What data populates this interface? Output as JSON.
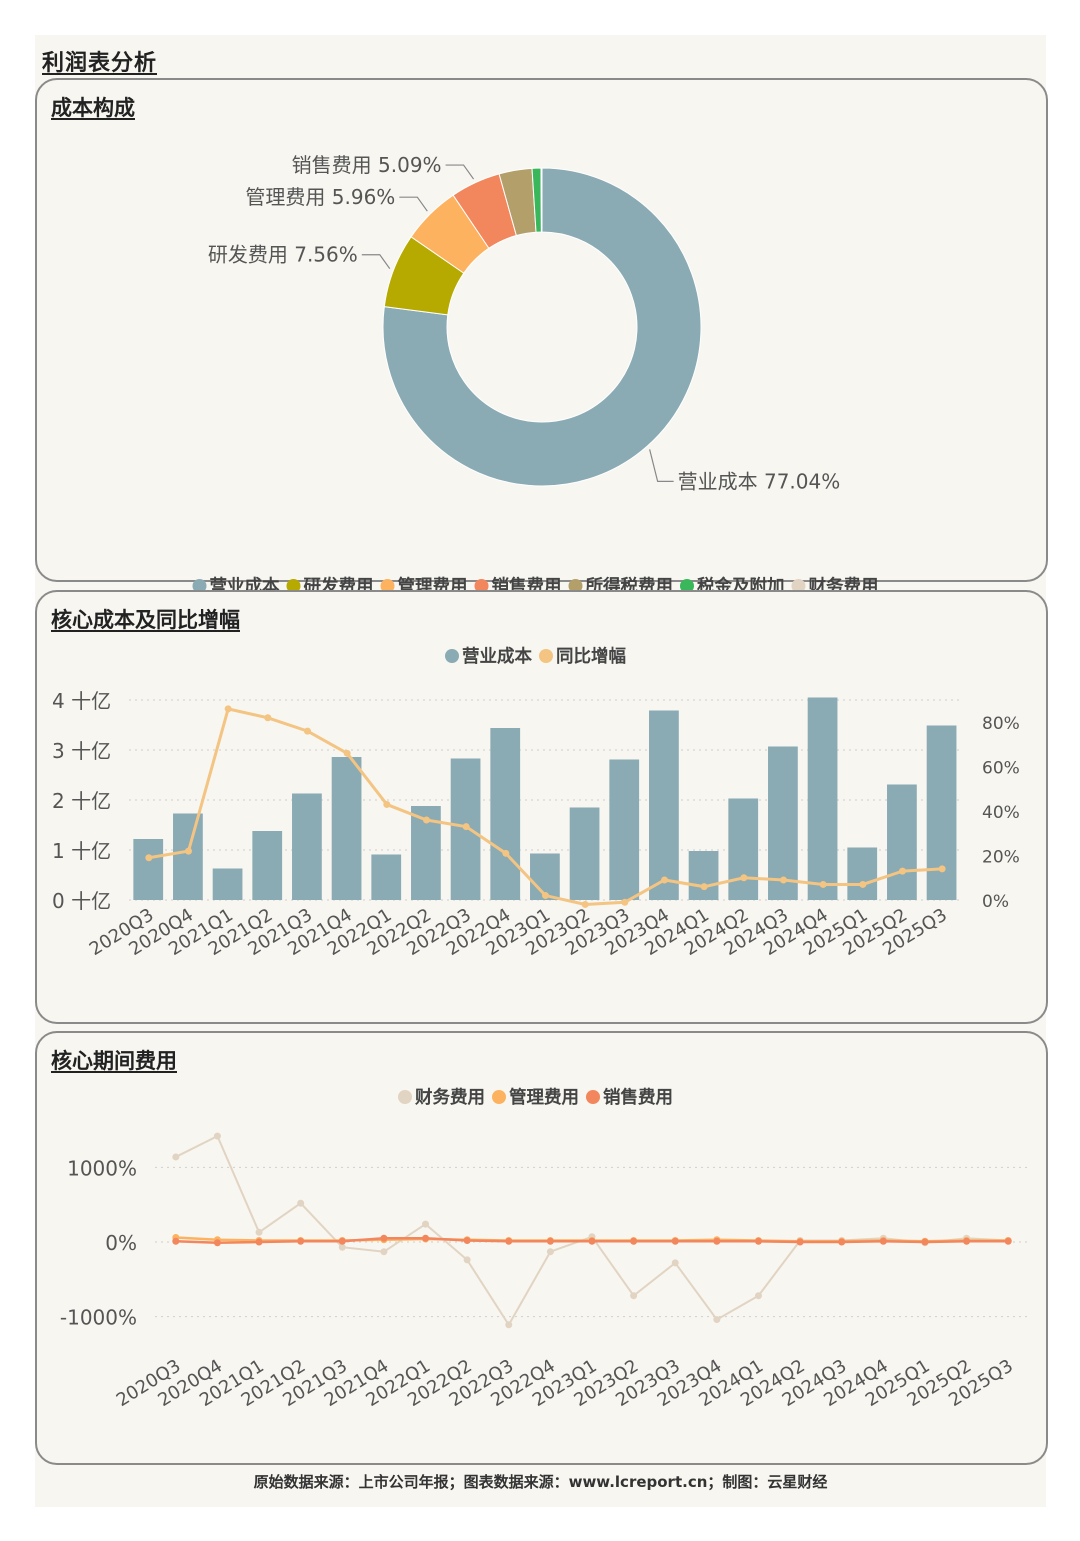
{
  "page": {
    "title": "利润表分析",
    "footer": "原始数据来源：上市公司年报；图表数据来源：www.lcreport.cn；制图：云星财经"
  },
  "colors": {
    "营业成本": "#8aaab4",
    "研发费用": "#b6a900",
    "管理费用": "#fdb25f",
    "销售费用": "#f2865d",
    "所得税费用": "#b29f6a",
    "税金及附加": "#3bb75b",
    "财务费用": "#e2d4c2",
    "同比增幅": "#f3c482"
  },
  "chart_data": [
    {
      "type": "pie",
      "title": "成本构成",
      "donut": true,
      "legend": [
        "营业成本",
        "研发费用",
        "管理费用",
        "销售费用",
        "所得税费用",
        "税金及附加",
        "财务费用"
      ],
      "slices": [
        {
          "name": "营业成本",
          "value": 77.04,
          "label": "营业成本 77.04%"
        },
        {
          "name": "研发费用",
          "value": 7.56,
          "label": "研发费用 7.56%"
        },
        {
          "name": "管理费用",
          "value": 5.96,
          "label": "管理费用 5.96%"
        },
        {
          "name": "销售费用",
          "value": 5.09,
          "label": "销售费用 5.09%"
        },
        {
          "name": "所得税费用",
          "value": 3.35
        },
        {
          "name": "税金及附加",
          "value": 0.9
        },
        {
          "name": "财务费用",
          "value": 0.1
        }
      ]
    },
    {
      "type": "bar",
      "title": "核心成本及同比增幅",
      "legend": [
        "营业成本",
        "同比增幅"
      ],
      "categories": [
        "2020Q3",
        "2020Q4",
        "2021Q1",
        "2021Q2",
        "2021Q3",
        "2021Q4",
        "2022Q1",
        "2022Q2",
        "2022Q3",
        "2022Q4",
        "2023Q1",
        "2023Q2",
        "2023Q3",
        "2023Q4",
        "2024Q1",
        "2024Q2",
        "2024Q3",
        "2024Q4",
        "2025Q1",
        "2025Q2",
        "2025Q3"
      ],
      "series": [
        {
          "name": "营业成本",
          "type": "bar",
          "axis": "left",
          "values": [
            1.22,
            1.73,
            0.63,
            1.38,
            2.13,
            2.86,
            0.91,
            1.88,
            2.83,
            3.44,
            0.93,
            1.85,
            2.81,
            3.79,
            0.98,
            2.03,
            3.07,
            4.05,
            1.05,
            2.31,
            3.49
          ]
        },
        {
          "name": "同比增幅",
          "type": "line",
          "axis": "right",
          "values": [
            19,
            22,
            86,
            82,
            76,
            66,
            43,
            36,
            33,
            21,
            2,
            -2,
            -1,
            9,
            6,
            10,
            9,
            7,
            7,
            13,
            14
          ]
        }
      ],
      "left_axis": {
        "ticks": [
          "0 十亿",
          "1 十亿",
          "2 十亿",
          "3 十亿",
          "4 十亿"
        ],
        "range": [
          0,
          4
        ]
      },
      "right_axis": {
        "ticks": [
          "0%",
          "20%",
          "40%",
          "60%",
          "80%"
        ],
        "range": [
          0,
          90
        ]
      }
    },
    {
      "type": "line",
      "title": "核心期间费用",
      "legend": [
        "财务费用",
        "管理费用",
        "销售费用"
      ],
      "categories": [
        "2020Q3",
        "2020Q4",
        "2021Q1",
        "2021Q2",
        "2021Q3",
        "2021Q4",
        "2022Q1",
        "2022Q2",
        "2022Q3",
        "2022Q4",
        "2023Q1",
        "2023Q2",
        "2023Q3",
        "2023Q4",
        "2024Q1",
        "2024Q2",
        "2024Q3",
        "2024Q4",
        "2025Q1",
        "2025Q2",
        "2025Q3"
      ],
      "series": [
        {
          "name": "财务费用",
          "values": [
            1140,
            1420,
            130,
            520,
            -70,
            -130,
            240,
            -240,
            -1110,
            -130,
            70,
            -720,
            -280,
            -1040,
            -720,
            20,
            20,
            50,
            -10,
            50,
            20
          ]
        },
        {
          "name": "管理费用",
          "values": [
            60,
            30,
            20,
            20,
            20,
            30,
            40,
            30,
            20,
            20,
            20,
            20,
            20,
            30,
            20,
            10,
            10,
            20,
            10,
            20,
            20
          ]
        },
        {
          "name": "销售费用",
          "values": [
            10,
            -10,
            0,
            10,
            10,
            50,
            50,
            20,
            10,
            10,
            10,
            10,
            10,
            10,
            10,
            0,
            0,
            10,
            0,
            10,
            10
          ]
        }
      ],
      "y_axis": {
        "ticks": [
          "-1000%",
          "0%",
          "1000%"
        ],
        "range": [
          -1300,
          1500
        ]
      }
    }
  ]
}
